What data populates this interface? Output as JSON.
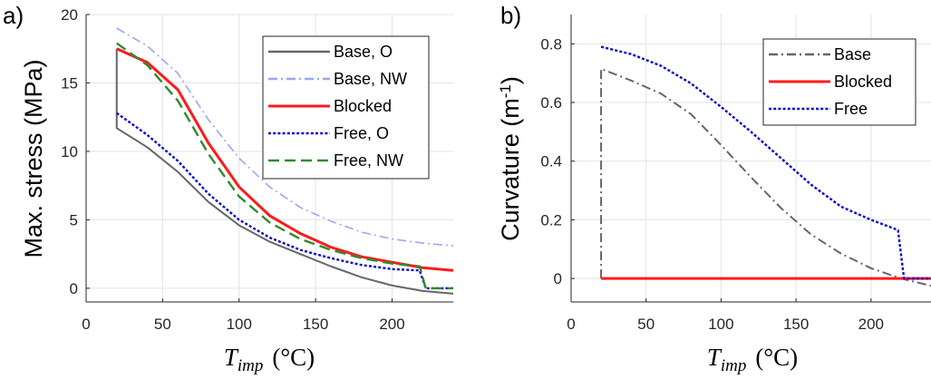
{
  "chart_data": [
    {
      "type": "line",
      "panel_label": "a)",
      "ylabel": "Max. stress (MPa)",
      "xlabel": "T",
      "xlabel_sub": "imp",
      "xlabel_unit": "(°C)",
      "xlim": [
        0,
        240
      ],
      "ylim": [
        -1,
        20
      ],
      "xticks": [
        0,
        50,
        100,
        150,
        200
      ],
      "yticks": [
        0,
        5,
        10,
        15,
        20
      ],
      "grid": true,
      "legend_position": "top-right",
      "series": [
        {
          "name": "Base, O",
          "color": "#666666",
          "dash": "solid",
          "points": [
            [
              20,
              17.5
            ],
            [
              20,
              11.7
            ],
            [
              40,
              10.3
            ],
            [
              60,
              8.5
            ],
            [
              80,
              6.3
            ],
            [
              100,
              4.6
            ],
            [
              120,
              3.4
            ],
            [
              140,
              2.5
            ],
            [
              160,
              1.6
            ],
            [
              180,
              0.8
            ],
            [
              200,
              0.2
            ],
            [
              220,
              -0.2
            ],
            [
              240,
              -0.4
            ]
          ]
        },
        {
          "name": "Base, NW",
          "color": "#9aa8f0",
          "dash": "dashdot",
          "points": [
            [
              20,
              19.0
            ],
            [
              40,
              17.7
            ],
            [
              60,
              15.7
            ],
            [
              80,
              12.3
            ],
            [
              100,
              9.5
            ],
            [
              120,
              7.4
            ],
            [
              140,
              5.9
            ],
            [
              160,
              4.9
            ],
            [
              180,
              4.1
            ],
            [
              200,
              3.6
            ],
            [
              220,
              3.3
            ],
            [
              240,
              3.1
            ]
          ]
        },
        {
          "name": "Blocked",
          "color": "#ff1a1a",
          "dash": "solid",
          "points": [
            [
              20,
              17.5
            ],
            [
              40,
              16.5
            ],
            [
              60,
              14.5
            ],
            [
              80,
              10.6
            ],
            [
              100,
              7.4
            ],
            [
              120,
              5.3
            ],
            [
              140,
              4.0
            ],
            [
              160,
              3.0
            ],
            [
              180,
              2.3
            ],
            [
              200,
              1.9
            ],
            [
              220,
              1.5
            ],
            [
              240,
              1.3
            ]
          ]
        },
        {
          "name": "Free, O",
          "color": "#0a0acc",
          "dash": "dotted",
          "points": [
            [
              20,
              12.8
            ],
            [
              40,
              11.2
            ],
            [
              60,
              9.3
            ],
            [
              80,
              6.9
            ],
            [
              100,
              5.0
            ],
            [
              120,
              3.7
            ],
            [
              140,
              2.8
            ],
            [
              160,
              2.2
            ],
            [
              180,
              1.7
            ],
            [
              200,
              1.4
            ],
            [
              218,
              1.3
            ],
            [
              222,
              0.0
            ],
            [
              240,
              0.0
            ]
          ]
        },
        {
          "name": "Free, NW",
          "color": "#2e8b2e",
          "dash": "dashed",
          "points": [
            [
              20,
              17.9
            ],
            [
              40,
              16.3
            ],
            [
              60,
              13.7
            ],
            [
              80,
              9.8
            ],
            [
              100,
              6.7
            ],
            [
              120,
              4.8
            ],
            [
              140,
              3.6
            ],
            [
              160,
              2.8
            ],
            [
              180,
              2.2
            ],
            [
              200,
              1.8
            ],
            [
              218,
              1.6
            ],
            [
              222,
              0.0
            ],
            [
              240,
              0.0
            ]
          ]
        }
      ]
    },
    {
      "type": "line",
      "panel_label": "b)",
      "ylabel": "Curvature (m",
      "ylabel_sup": "-1",
      "ylabel_close": ")",
      "xlabel": "T",
      "xlabel_sub": "imp",
      "xlabel_unit": "(°C)",
      "xlim": [
        0,
        240
      ],
      "ylim": [
        -0.08,
        0.9
      ],
      "xticks": [
        0,
        50,
        100,
        150,
        200
      ],
      "yticks": [
        0,
        0.2,
        0.4,
        0.6,
        0.8
      ],
      "ytick_labels": [
        "0",
        "0.2",
        "0.4",
        "0.6",
        "0.8"
      ],
      "grid": true,
      "legend_position": "top-right",
      "series": [
        {
          "name": "Base",
          "color": "#666666",
          "dash": "dashdot",
          "points": [
            [
              20,
              0.0
            ],
            [
              20,
              0.715
            ],
            [
              40,
              0.675
            ],
            [
              60,
              0.63
            ],
            [
              80,
              0.56
            ],
            [
              100,
              0.455
            ],
            [
              120,
              0.345
            ],
            [
              140,
              0.24
            ],
            [
              160,
              0.15
            ],
            [
              180,
              0.085
            ],
            [
              200,
              0.035
            ],
            [
              220,
              0.0
            ],
            [
              240,
              -0.025
            ]
          ]
        },
        {
          "name": "Blocked",
          "color": "#ff1a1a",
          "dash": "solid",
          "points": [
            [
              20,
              0.0
            ],
            [
              240,
              0.0
            ]
          ]
        },
        {
          "name": "Free",
          "color": "#0a0acc",
          "dash": "dotted",
          "points": [
            [
              20,
              0.79
            ],
            [
              40,
              0.765
            ],
            [
              60,
              0.725
            ],
            [
              80,
              0.665
            ],
            [
              100,
              0.585
            ],
            [
              120,
              0.5
            ],
            [
              140,
              0.41
            ],
            [
              160,
              0.32
            ],
            [
              180,
              0.245
            ],
            [
              200,
              0.2
            ],
            [
              218,
              0.165
            ],
            [
              222,
              0.0
            ],
            [
              240,
              0.0
            ]
          ]
        }
      ]
    }
  ]
}
